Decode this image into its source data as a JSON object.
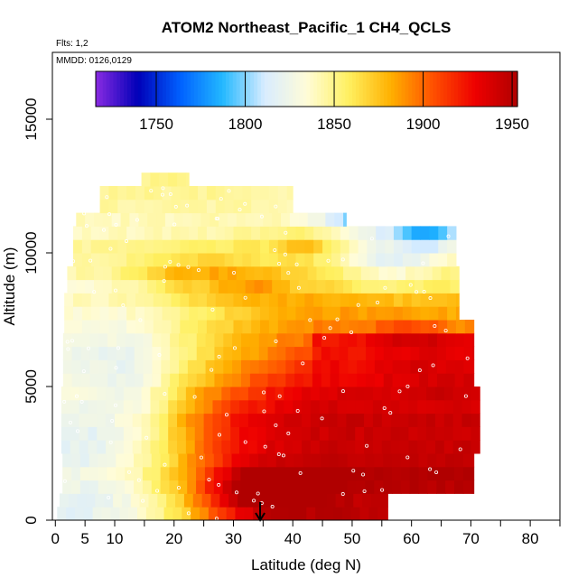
{
  "chart_data": {
    "type": "heatmap",
    "title": "ATOM2 Northeast_Pacific_1 CH4_QCLS",
    "flights_note": "Flts: 1,2",
    "date_note": "MMDD: 0126,0129",
    "xlabel": "Latitude (deg N)",
    "ylabel": "Altitude (m)",
    "xlim": [
      -0.5,
      85
    ],
    "ylim": [
      0,
      17500
    ],
    "x_ticks": [
      0,
      5,
      10,
      15,
      20,
      25,
      30,
      35,
      40,
      45,
      50,
      55,
      60,
      65,
      70,
      75,
      80,
      85
    ],
    "x_tick_labels": [
      {
        "value": 0,
        "label": "0"
      },
      {
        "value": 5,
        "label": "5"
      },
      {
        "value": 10,
        "label": "10"
      },
      {
        "value": 20,
        "label": "20"
      },
      {
        "value": 30,
        "label": "30"
      },
      {
        "value": 40,
        "label": "40"
      },
      {
        "value": 50,
        "label": "50"
      },
      {
        "value": 60,
        "label": "60"
      },
      {
        "value": 70,
        "label": "70"
      },
      {
        "value": 80,
        "label": "80"
      }
    ],
    "y_tick_labels": [
      {
        "value": 0,
        "label": "0"
      },
      {
        "value": 5000,
        "label": "5000"
      },
      {
        "value": 10000,
        "label": "10000"
      },
      {
        "value": 15000,
        "label": "15000"
      }
    ],
    "colorbar": {
      "min": 1716,
      "max": 1953,
      "ticks": [
        {
          "value": 1750,
          "label": "1750"
        },
        {
          "value": 1800,
          "label": "1800"
        },
        {
          "value": 1850,
          "label": "1850"
        },
        {
          "value": 1900,
          "label": "1900"
        },
        {
          "value": 1950,
          "label": "1950"
        }
      ],
      "colors": [
        "#8a2be2",
        "#0000b8",
        "#0060ff",
        "#22b8ff",
        "#d8ecff",
        "#fffcd8",
        "#fff060",
        "#ffb000",
        "#ff5000",
        "#ee0000",
        "#b00000"
      ]
    },
    "marker_latitude": 34.5,
    "grid": false,
    "legend": "colorbar-top"
  }
}
